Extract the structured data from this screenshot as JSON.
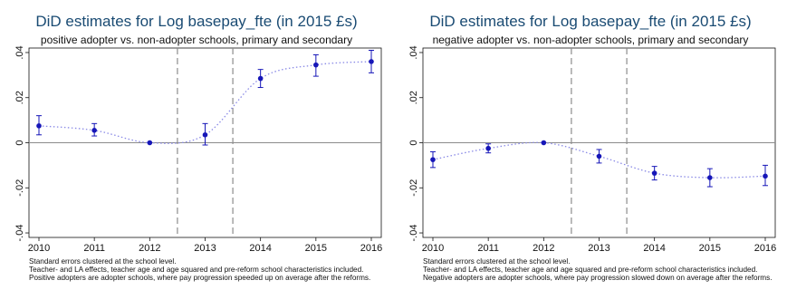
{
  "chart_data": [
    {
      "type": "scatter",
      "title": "DiD estimates for Log basepay_fte (in 2015 £s)",
      "subtitle": "positive adopter vs. non-adopter schools, primary and secondary",
      "xlabel": "",
      "ylabel": "",
      "categories": [
        "2010",
        "2011",
        "2012",
        "2013",
        "2014",
        "2015",
        "2016"
      ],
      "x": [
        2010,
        2011,
        2012,
        2013,
        2014,
        2015,
        2016
      ],
      "xlim": [
        2010,
        2016
      ],
      "ylim": [
        -0.042,
        0.042
      ],
      "yticks": [
        0.04,
        0.02,
        0,
        -0.02,
        -0.04
      ],
      "ytick_labels": [
        ".04",
        ".02",
        "0",
        "-.02",
        "-.04"
      ],
      "vlines": [
        2012.5,
        2013.5
      ],
      "series": [
        {
          "values": [
            0.0075,
            0.0055,
            0.0,
            0.0035,
            0.0285,
            0.0345,
            0.036
          ],
          "ci_low": [
            0.0035,
            0.003,
            0.0,
            -0.001,
            0.0245,
            0.0295,
            0.031
          ],
          "ci_high": [
            0.012,
            0.0085,
            0.0,
            0.0085,
            0.0325,
            0.039,
            0.041
          ]
        }
      ],
      "grid": false,
      "colors": {
        "marker": "#1616b8",
        "line": "#8a8ae6",
        "vline": "#8c8c8c",
        "zero": "#8c8c8c",
        "title": "#1a4b73",
        "axis": "#111111"
      },
      "notes": [
        "Standard errors clustered at the school level.",
        "Teacher- and LA effects, teacher age and age squared and pre-reform school characteristics included.",
        "Positive adopters are adopter schools, where pay progression speeded up on average after the reforms."
      ]
    },
    {
      "type": "scatter",
      "title": "DiD estimates for Log basepay_fte (in 2015 £s)",
      "subtitle": "negative adopter vs. non-adopter schools, primary and secondary",
      "xlabel": "",
      "ylabel": "",
      "categories": [
        "2010",
        "2011",
        "2012",
        "2013",
        "2014",
        "2015",
        "2016"
      ],
      "x": [
        2010,
        2011,
        2012,
        2013,
        2014,
        2015,
        2016
      ],
      "xlim": [
        2010,
        2016
      ],
      "ylim": [
        -0.042,
        0.042
      ],
      "yticks": [
        0.04,
        0.02,
        0,
        -0.02,
        -0.04
      ],
      "ytick_labels": [
        ".04",
        ".02",
        "0",
        "-.02",
        "-.04"
      ],
      "vlines": [
        2012.5,
        2013.5
      ],
      "series": [
        {
          "values": [
            -0.0075,
            -0.0025,
            0.0,
            -0.006,
            -0.0135,
            -0.0155,
            -0.0148
          ],
          "ci_low": [
            -0.011,
            -0.0045,
            0.0,
            -0.009,
            -0.0165,
            -0.0195,
            -0.019
          ],
          "ci_high": [
            -0.004,
            -0.0005,
            0.0,
            -0.003,
            -0.0105,
            -0.0115,
            -0.01
          ]
        }
      ],
      "grid": false,
      "colors": {
        "marker": "#1616b8",
        "line": "#8a8ae6",
        "vline": "#8c8c8c",
        "zero": "#8c8c8c",
        "title": "#1a4b73",
        "axis": "#111111"
      },
      "notes": [
        "Standard errors clustered at the school level.",
        "Teacher- and LA effects, teacher age and age squared and pre-reform school characteristics included.",
        "Negative adopters are adopter schools, where pay progression slowed down on average after the reforms."
      ]
    }
  ]
}
